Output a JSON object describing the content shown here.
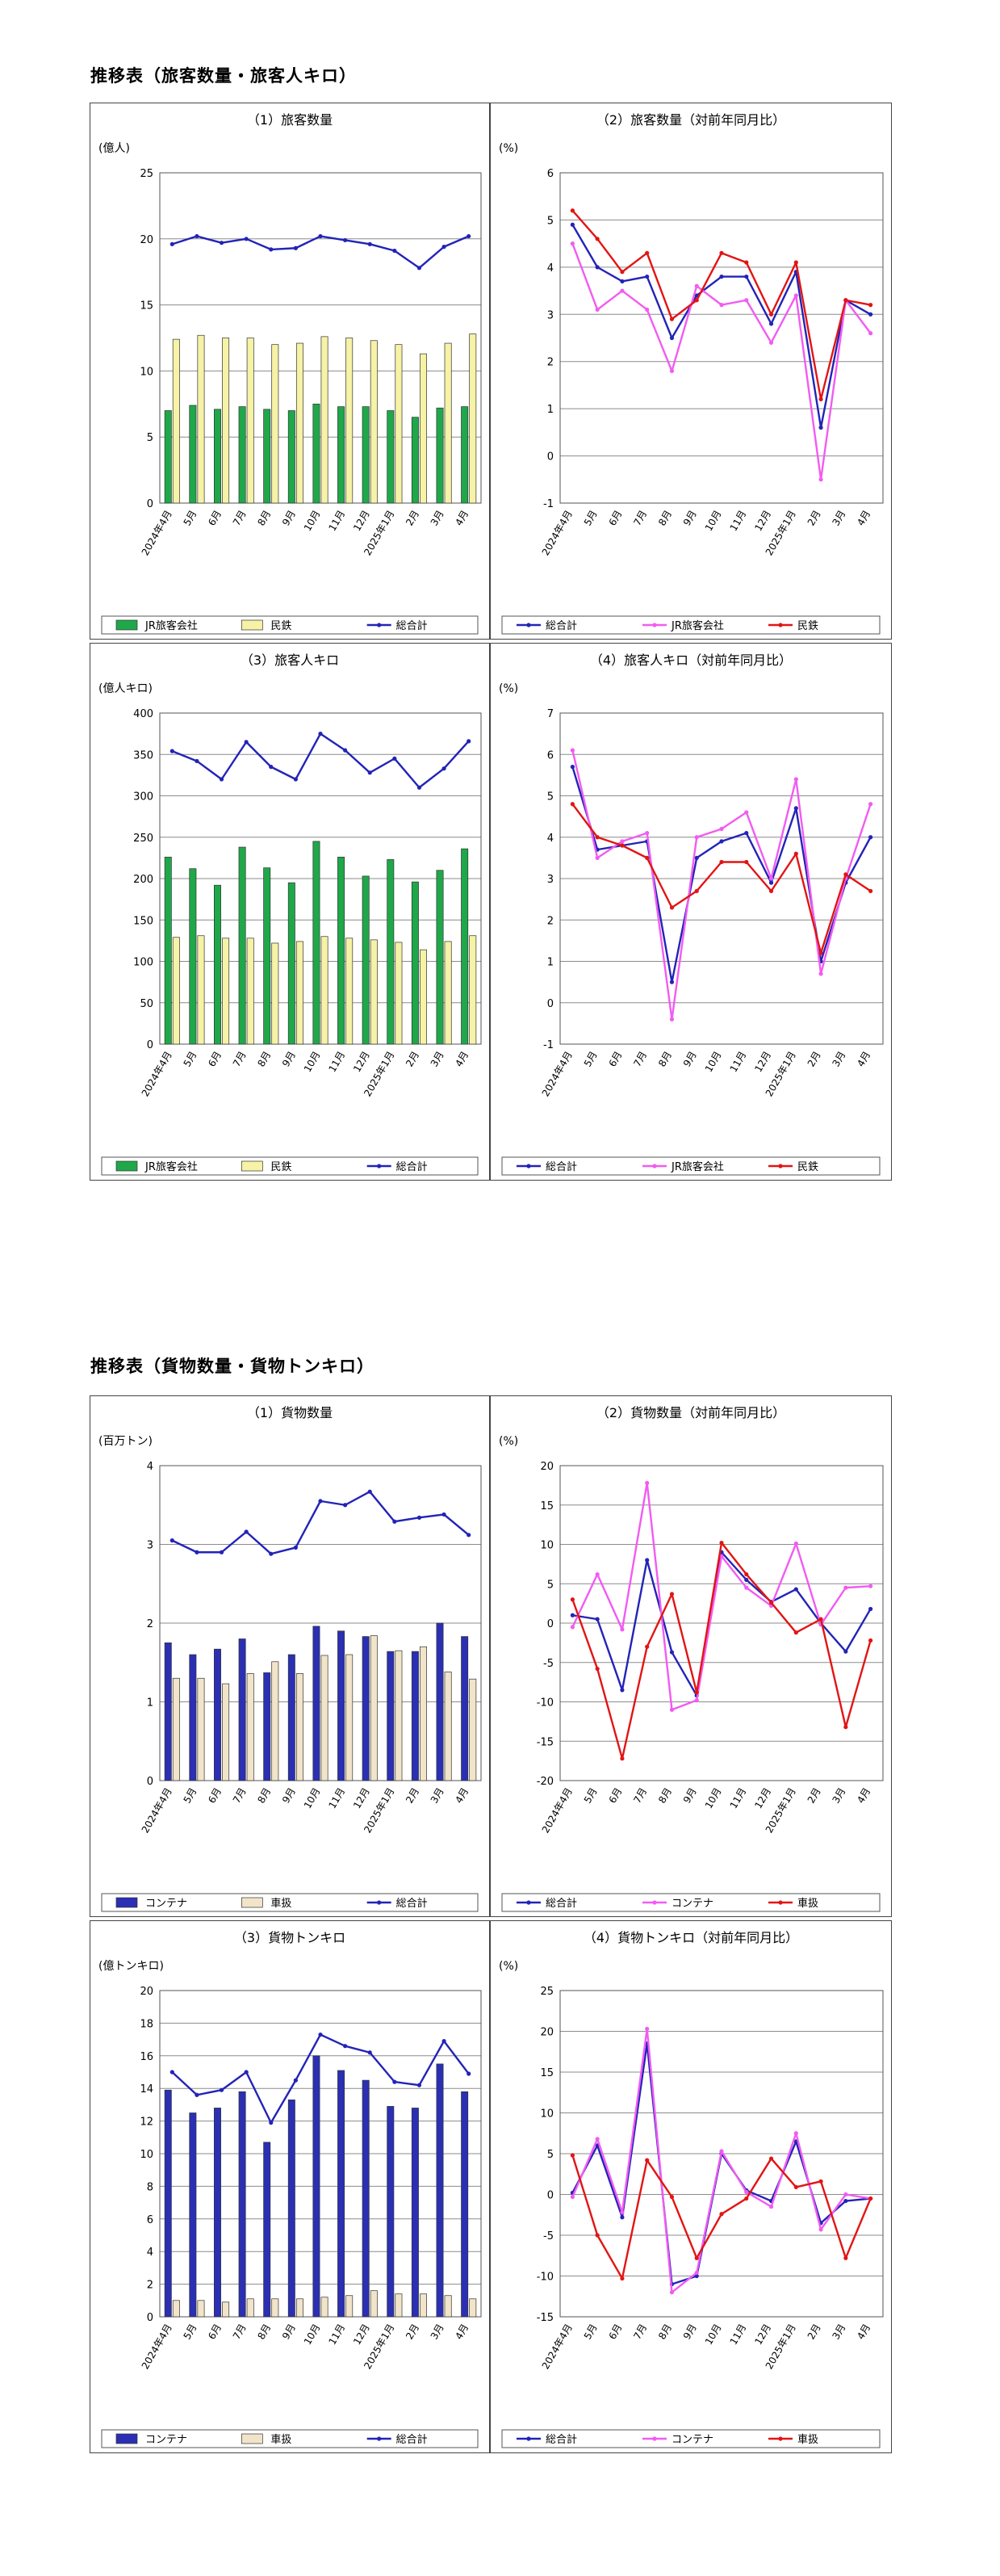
{
  "sections": [
    {
      "title": "推移表（旅客数量・旅客人キロ）"
    },
    {
      "title": "推移表（貨物数量・貨物トンキロ）"
    }
  ],
  "months": [
    "2024年4月",
    "5月",
    "6月",
    "7月",
    "8月",
    "9月",
    "10月",
    "11月",
    "12月",
    "2025年1月",
    "2月",
    "3月",
    "4月"
  ],
  "colors": {
    "jr": "#1fa84a",
    "private": "#f6f2a6",
    "total": "#2323b8",
    "container": "#2b2fb4",
    "shako": "#f1e4c9",
    "pink": "#f25bf2",
    "red": "#e31414"
  },
  "chart_data": [
    {
      "id": "p1",
      "type": "bar",
      "title": "（1）旅客数量",
      "unit": "(億人)",
      "ylim": [
        0,
        25
      ],
      "yticks": [
        0,
        5,
        10,
        15,
        20,
        25
      ],
      "series": [
        {
          "name": "JR旅客会社",
          "kind": "bar",
          "color": "#1fa84a",
          "values": [
            7.0,
            7.4,
            7.1,
            7.3,
            7.1,
            7.0,
            7.5,
            7.3,
            7.3,
            7.0,
            6.5,
            7.2,
            7.3
          ]
        },
        {
          "name": "民鉄",
          "kind": "bar",
          "color": "#f6f2a6",
          "values": [
            12.4,
            12.7,
            12.5,
            12.5,
            12.0,
            12.1,
            12.6,
            12.5,
            12.3,
            12.0,
            11.3,
            12.1,
            12.8
          ]
        },
        {
          "name": "総合計",
          "kind": "line",
          "color": "#2323b8",
          "values": [
            19.6,
            20.2,
            19.7,
            20.0,
            19.2,
            19.3,
            20.2,
            19.9,
            19.6,
            19.1,
            17.8,
            19.4,
            20.2
          ]
        }
      ]
    },
    {
      "id": "p2",
      "type": "line",
      "title": "（2）旅客数量（対前年同月比）",
      "unit": "(%)",
      "ylim": [
        -1,
        6
      ],
      "yticks": [
        -1,
        0,
        1,
        2,
        3,
        4,
        5,
        6
      ],
      "series": [
        {
          "name": "総合計",
          "color": "#2323b8",
          "values": [
            4.9,
            4.0,
            3.7,
            3.8,
            2.5,
            3.4,
            3.8,
            3.8,
            2.8,
            3.9,
            0.6,
            3.3,
            3.0
          ]
        },
        {
          "name": "JR旅客会社",
          "color": "#f25bf2",
          "values": [
            4.5,
            3.1,
            3.5,
            3.1,
            1.8,
            3.6,
            3.2,
            3.3,
            2.4,
            3.4,
            -0.5,
            3.3,
            2.6
          ]
        },
        {
          "name": "民鉄",
          "color": "#e31414",
          "values": [
            5.2,
            4.6,
            3.9,
            4.3,
            2.9,
            3.3,
            4.3,
            4.1,
            3.0,
            4.1,
            1.2,
            3.3,
            3.2
          ]
        }
      ]
    },
    {
      "id": "p3",
      "type": "bar",
      "title": "（3）旅客人キロ",
      "unit": "(億人キロ)",
      "ylim": [
        0,
        400
      ],
      "yticks": [
        0,
        50,
        100,
        150,
        200,
        250,
        300,
        350,
        400
      ],
      "series": [
        {
          "name": "JR旅客会社",
          "kind": "bar",
          "color": "#1fa84a",
          "values": [
            226,
            212,
            192,
            238,
            213,
            195,
            245,
            226,
            203,
            223,
            196,
            210,
            236
          ]
        },
        {
          "name": "民鉄",
          "kind": "bar",
          "color": "#f6f2a6",
          "values": [
            129,
            131,
            128,
            128,
            122,
            124,
            130,
            128,
            126,
            123,
            114,
            124,
            131
          ]
        },
        {
          "name": "総合計",
          "kind": "line",
          "color": "#2323b8",
          "values": [
            354,
            342,
            320,
            365,
            335,
            320,
            375,
            355,
            328,
            345,
            310,
            333,
            366
          ]
        }
      ]
    },
    {
      "id": "p4",
      "type": "line",
      "title": "（4）旅客人キロ（対前年同月比）",
      "unit": "(%)",
      "ylim": [
        -1,
        7
      ],
      "yticks": [
        -1,
        0,
        1,
        2,
        3,
        4,
        5,
        6,
        7
      ],
      "series": [
        {
          "name": "総合計",
          "color": "#2323b8",
          "values": [
            5.7,
            3.7,
            3.8,
            3.9,
            0.5,
            3.5,
            3.9,
            4.1,
            2.9,
            4.7,
            1.0,
            2.9,
            4.0
          ]
        },
        {
          "name": "JR旅客会社",
          "color": "#f25bf2",
          "values": [
            6.1,
            3.5,
            3.9,
            4.1,
            -0.4,
            4.0,
            4.2,
            4.6,
            3.0,
            5.4,
            0.7,
            3.0,
            4.8
          ]
        },
        {
          "name": "民鉄",
          "color": "#e31414",
          "values": [
            4.8,
            4.0,
            3.8,
            3.5,
            2.3,
            2.7,
            3.4,
            3.4,
            2.7,
            3.6,
            1.2,
            3.1,
            2.7
          ]
        }
      ]
    },
    {
      "id": "f1",
      "type": "bar",
      "title": "（1）貨物数量",
      "unit": "(百万トン)",
      "ylim": [
        0,
        4
      ],
      "yticks": [
        0,
        1,
        2,
        3,
        4
      ],
      "series": [
        {
          "name": "コンテナ",
          "kind": "bar",
          "color": "#2b2fb4",
          "values": [
            1.75,
            1.6,
            1.67,
            1.8,
            1.37,
            1.6,
            1.96,
            1.9,
            1.83,
            1.64,
            1.64,
            2.0,
            1.83
          ]
        },
        {
          "name": "車扱",
          "kind": "bar",
          "color": "#f1e4c9",
          "values": [
            1.3,
            1.3,
            1.23,
            1.36,
            1.51,
            1.36,
            1.59,
            1.6,
            1.84,
            1.65,
            1.7,
            1.38,
            1.29
          ]
        },
        {
          "name": "総合計",
          "kind": "line",
          "color": "#2323b8",
          "values": [
            3.05,
            2.9,
            2.9,
            3.16,
            2.88,
            2.96,
            3.55,
            3.5,
            3.67,
            3.29,
            3.34,
            3.38,
            3.12
          ]
        }
      ]
    },
    {
      "id": "f2",
      "type": "line",
      "title": "（2）貨物数量（対前年同月比）",
      "unit": "(%)",
      "ylim": [
        -20,
        20
      ],
      "yticks": [
        -20,
        -15,
        -10,
        -5,
        0,
        5,
        10,
        15,
        20
      ],
      "series": [
        {
          "name": "総合計",
          "color": "#2323b8",
          "values": [
            1.0,
            0.5,
            -8.5,
            8.0,
            -3.7,
            -9.2,
            9.0,
            5.5,
            2.7,
            4.3,
            0.0,
            -3.6,
            1.8
          ]
        },
        {
          "name": "コンテナ",
          "color": "#f25bf2",
          "values": [
            -0.5,
            6.2,
            -0.8,
            17.8,
            -11.0,
            -9.8,
            8.5,
            4.5,
            2.2,
            10.1,
            -0.2,
            4.5,
            4.7
          ]
        },
        {
          "name": "車扱",
          "color": "#e31414",
          "values": [
            3.0,
            -5.8,
            -17.2,
            -3.0,
            3.7,
            -8.8,
            10.2,
            6.2,
            2.6,
            -1.2,
            0.5,
            -13.2,
            -2.2
          ]
        }
      ]
    },
    {
      "id": "f3",
      "type": "bar",
      "title": "（3）貨物トンキロ",
      "unit": "(億トンキロ)",
      "ylim": [
        0,
        20
      ],
      "yticks": [
        0,
        2,
        4,
        6,
        8,
        10,
        12,
        14,
        16,
        18,
        20
      ],
      "series": [
        {
          "name": "コンテナ",
          "kind": "bar",
          "color": "#2b2fb4",
          "values": [
            13.9,
            12.5,
            12.8,
            13.8,
            10.7,
            13.3,
            16.0,
            15.1,
            14.5,
            12.9,
            12.8,
            15.5,
            13.8
          ]
        },
        {
          "name": "車扱",
          "kind": "bar",
          "color": "#f1e4c9",
          "values": [
            1.0,
            1.0,
            0.9,
            1.1,
            1.1,
            1.1,
            1.2,
            1.3,
            1.6,
            1.4,
            1.4,
            1.3,
            1.1
          ]
        },
        {
          "name": "総合計",
          "kind": "line",
          "color": "#2323b8",
          "values": [
            15.0,
            13.6,
            13.9,
            15.0,
            11.9,
            14.5,
            17.3,
            16.6,
            16.2,
            14.4,
            14.2,
            16.9,
            14.9
          ]
        }
      ]
    },
    {
      "id": "f4",
      "type": "line",
      "title": "（4）貨物トンキロ（対前年同月比）",
      "unit": "(%)",
      "ylim": [
        -15,
        25
      ],
      "yticks": [
        -15,
        -10,
        -5,
        0,
        5,
        10,
        15,
        20,
        25
      ],
      "series": [
        {
          "name": "総合計",
          "color": "#2323b8",
          "values": [
            0.2,
            6.0,
            -2.8,
            18.5,
            -11.0,
            -10.0,
            5.0,
            0.5,
            -0.8,
            6.5,
            -3.5,
            -0.8,
            -0.5
          ]
        },
        {
          "name": "コンテナ",
          "color": "#f25bf2",
          "values": [
            -0.3,
            6.8,
            -2.2,
            20.3,
            -12.0,
            -9.6,
            5.3,
            0.3,
            -1.5,
            7.5,
            -4.3,
            0.0,
            -0.5
          ]
        },
        {
          "name": "車扱",
          "color": "#e31414",
          "values": [
            4.8,
            -5.0,
            -10.3,
            4.2,
            -0.3,
            -7.8,
            -2.4,
            -0.5,
            4.4,
            0.9,
            1.6,
            -7.8,
            -0.5
          ]
        }
      ]
    }
  ]
}
